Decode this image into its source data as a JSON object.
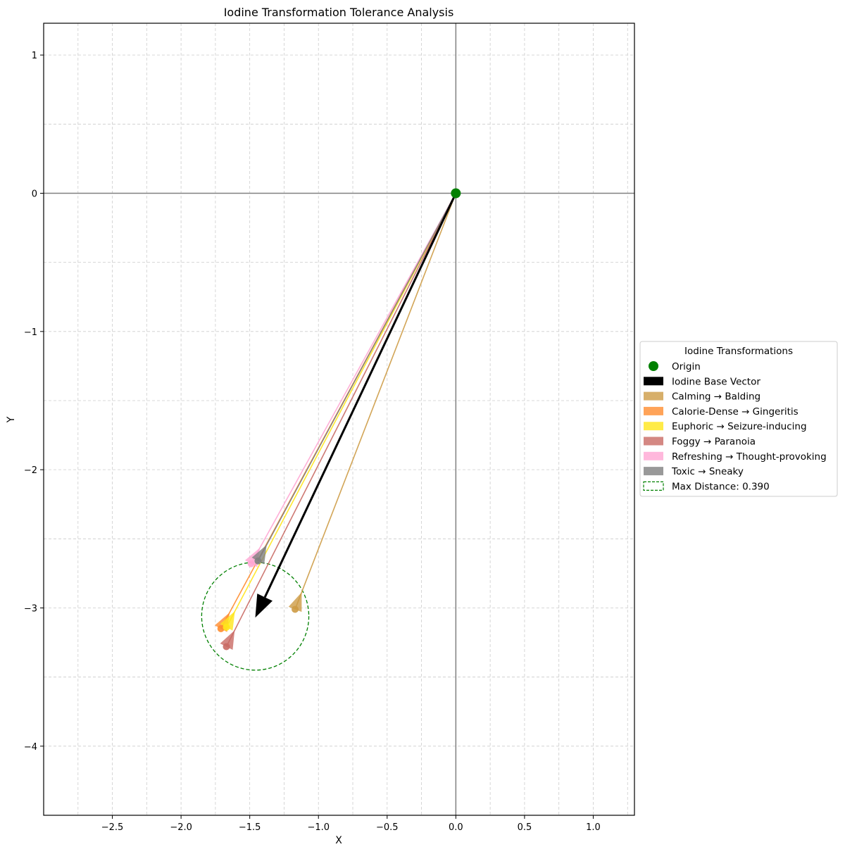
{
  "chart_data": {
    "type": "quiver",
    "title": "Iodine Transformation Tolerance Analysis",
    "xlabel": "X",
    "ylabel": "Y",
    "xlim": [
      -3.0,
      1.3
    ],
    "ylim": [
      -4.5,
      1.23
    ],
    "x_ticks": [
      -2.5,
      -2.0,
      -1.5,
      -1.0,
      -0.5,
      0.0,
      0.5,
      1.0
    ],
    "x_tick_labels": [
      "−2.5",
      "−2.0",
      "−1.5",
      "−1.0",
      "−0.5",
      "0.0",
      "0.5",
      "1.0"
    ],
    "y_ticks": [
      1,
      0,
      -1,
      -2,
      -3,
      -4
    ],
    "y_tick_labels": [
      "1",
      "0",
      "−1",
      "−2",
      "−3",
      "−4"
    ],
    "grid": true,
    "origin": {
      "name": "Origin",
      "x": 0.0,
      "y": 0.0,
      "color": "#008000"
    },
    "base_vector": {
      "name": "Iodine Base Vector",
      "x": -1.46,
      "y": -3.07,
      "color": "#000000"
    },
    "series": [
      {
        "name": "Calming → Balding",
        "x": -1.17,
        "y": -3.01,
        "color": "#cd9b45"
      },
      {
        "name": "Calorie-Dense → Gingeritis",
        "x": -1.71,
        "y": -3.15,
        "color": "#ff8c2e"
      },
      {
        "name": "Euphoric → Seizure-inducing",
        "x": -1.67,
        "y": -3.14,
        "color": "#ffe61a"
      },
      {
        "name": "Foggy → Paranoia",
        "x": -1.67,
        "y": -3.28,
        "color": "#c96a64"
      },
      {
        "name": "Refreshing → Thought-provoking",
        "x": -1.49,
        "y": -2.68,
        "color": "#ffa6d3"
      },
      {
        "name": "Toxic → Sneaky",
        "x": -1.44,
        "y": -2.66,
        "color": "#808080"
      }
    ],
    "circle": {
      "name": "Max Distance: 0.390",
      "cx": -1.46,
      "cy": -3.06,
      "r": 0.39,
      "color": "#008000"
    },
    "legend": {
      "title": "Iodine Transformations",
      "position": "center-right"
    }
  }
}
